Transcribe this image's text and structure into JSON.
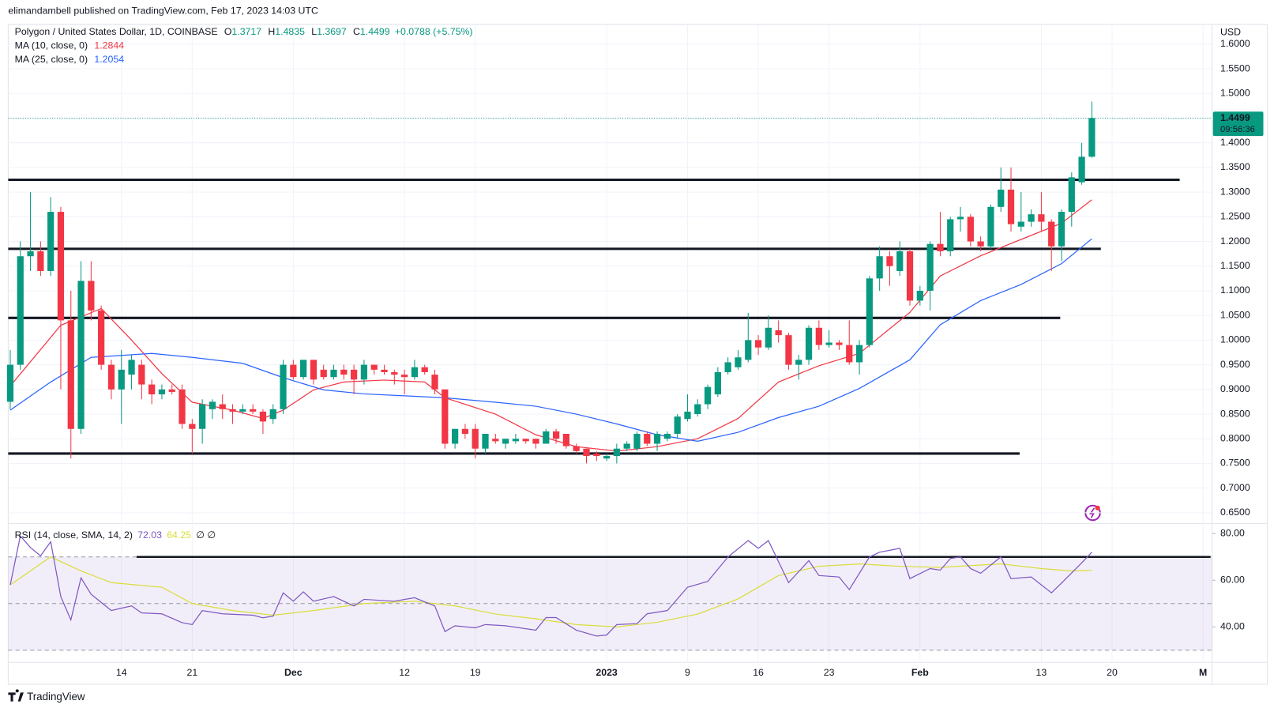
{
  "page": {
    "published": "elimandambell published on TradingView.com, Feb 17, 2023 14:03 UTC",
    "brand": "TradingView"
  },
  "chart_data": {
    "type": "candlestick",
    "symbol": "Polygon / United States Dollar, 1D, COINBASE",
    "ohlc_labels": [
      "O",
      "H",
      "L",
      "C"
    ],
    "change": "+0.0788 (+5.75%)",
    "currency": "USD",
    "countdown": "09:56:36",
    "up_color": "#089981",
    "down_color": "#f23645",
    "grid": true,
    "xlim": [
      -0.2,
      118.9
    ],
    "ylim": [
      0.63,
      1.64
    ],
    "xticks": [
      {
        "value": 11,
        "label": "14"
      },
      {
        "value": 18,
        "label": "21"
      },
      {
        "value": 28,
        "label": "Dec"
      },
      {
        "value": 39,
        "label": "12"
      },
      {
        "value": 46,
        "label": "19"
      },
      {
        "value": 59,
        "label": "2023"
      },
      {
        "value": 67,
        "label": "9"
      },
      {
        "value": 74,
        "label": "16"
      },
      {
        "value": 81,
        "label": "23"
      },
      {
        "value": 90,
        "label": "Feb"
      },
      {
        "value": 102,
        "label": "13"
      },
      {
        "value": 109,
        "label": "20"
      },
      {
        "value": 118,
        "label": "M"
      }
    ],
    "yticks": [
      {
        "value": 0.65,
        "label": "0.6500"
      },
      {
        "value": 0.7,
        "label": "0.7000"
      },
      {
        "value": 0.75,
        "label": "0.7500"
      },
      {
        "value": 0.8,
        "label": "0.8000"
      },
      {
        "value": 0.85,
        "label": "0.8500"
      },
      {
        "value": 0.9,
        "label": "0.9000"
      },
      {
        "value": 0.95,
        "label": "0.9500"
      },
      {
        "value": 1.0,
        "label": "1.0000"
      },
      {
        "value": 1.05,
        "label": "1.0500"
      },
      {
        "value": 1.1,
        "label": "1.1000"
      },
      {
        "value": 1.15,
        "label": "1.1500"
      },
      {
        "value": 1.2,
        "label": "1.2000"
      },
      {
        "value": 1.25,
        "label": "1.2500"
      },
      {
        "value": 1.3,
        "label": "1.3000"
      },
      {
        "value": 1.35,
        "label": "1.3500"
      },
      {
        "value": 1.4,
        "label": "1.4000"
      },
      {
        "value": 1.45,
        "label": "1.4500"
      },
      {
        "value": 1.5,
        "label": "1.5000"
      },
      {
        "value": 1.55,
        "label": "1.5500"
      },
      {
        "value": 1.6,
        "label": "1.6000"
      }
    ],
    "candles": {
      "open": [
        0.875,
        0.95,
        1.17,
        1.18,
        1.14,
        1.26,
        1.04,
        0.82,
        1.12,
        1.06,
        0.95,
        0.9,
        0.93,
        0.95,
        0.91,
        0.89,
        0.9,
        0.9,
        0.83,
        0.82,
        0.86,
        0.87,
        0.86,
        0.855,
        0.86,
        0.855,
        0.84,
        0.86,
        0.95,
        0.925,
        0.96,
        0.94,
        0.925,
        0.94,
        0.94,
        0.92,
        0.95,
        0.94,
        0.935,
        0.93,
        0.925,
        0.945,
        0.93,
        0.9,
        0.79,
        0.82,
        0.82,
        0.78,
        0.8,
        0.79,
        0.795,
        0.8,
        0.8,
        0.79,
        0.815,
        0.81,
        0.785,
        0.78,
        0.77,
        0.76,
        0.765,
        0.78,
        0.78,
        0.81,
        0.79,
        0.8,
        0.81,
        0.84,
        0.85,
        0.87,
        0.89,
        0.935,
        0.945,
        0.96,
        1.0,
        0.985,
        1.02,
        1.01,
        0.95,
        0.96,
        1.025,
        0.99,
        0.995,
        0.99,
        0.955,
        0.99,
        1.125,
        1.17,
        1.14,
        1.18,
        1.08,
        1.1,
        1.195,
        1.18,
        1.245,
        1.25,
        1.2,
        1.19,
        1.27,
        1.305,
        1.23,
        1.24,
        1.255,
        1.24,
        1.19,
        1.26,
        1.32,
        1.3717
      ],
      "high": [
        0.98,
        1.2,
        1.3,
        1.2,
        1.29,
        1.27,
        1.1,
        1.16,
        1.16,
        1.07,
        0.96,
        0.98,
        0.97,
        0.96,
        0.92,
        0.91,
        0.91,
        0.91,
        0.84,
        0.88,
        0.88,
        0.89,
        0.87,
        0.87,
        0.87,
        0.86,
        0.87,
        0.96,
        0.96,
        0.96,
        0.96,
        0.95,
        0.95,
        0.95,
        0.95,
        0.96,
        0.95,
        0.95,
        0.94,
        0.94,
        0.96,
        0.95,
        0.94,
        0.9,
        0.82,
        0.83,
        0.83,
        0.81,
        0.81,
        0.8,
        0.81,
        0.8,
        0.8,
        0.82,
        0.82,
        0.81,
        0.79,
        0.78,
        0.775,
        0.77,
        0.79,
        0.795,
        0.815,
        0.815,
        0.815,
        0.815,
        0.85,
        0.89,
        0.88,
        0.91,
        0.945,
        0.965,
        0.98,
        1.055,
        1.01,
        1.05,
        1.04,
        1.015,
        0.97,
        1.03,
        1.04,
        1.02,
        1.0,
        1.04,
        1.0,
        1.13,
        1.19,
        1.18,
        1.2,
        1.185,
        1.11,
        1.2,
        1.26,
        1.25,
        1.27,
        1.255,
        1.21,
        1.275,
        1.35,
        1.35,
        1.3,
        1.265,
        1.3,
        1.245,
        1.265,
        1.34,
        1.4,
        1.4835
      ],
      "low": [
        0.86,
        0.94,
        1.14,
        1.13,
        1.13,
        0.9,
        0.76,
        0.81,
        1.04,
        0.94,
        0.88,
        0.83,
        0.9,
        0.88,
        0.87,
        0.88,
        0.89,
        0.82,
        0.77,
        0.79,
        0.84,
        0.84,
        0.83,
        0.85,
        0.85,
        0.81,
        0.83,
        0.85,
        0.92,
        0.92,
        0.91,
        0.92,
        0.92,
        0.92,
        0.89,
        0.91,
        0.93,
        0.93,
        0.91,
        0.89,
        0.92,
        0.93,
        0.89,
        0.78,
        0.78,
        0.8,
        0.76,
        0.77,
        0.79,
        0.78,
        0.79,
        0.79,
        0.78,
        0.79,
        0.79,
        0.78,
        0.77,
        0.75,
        0.755,
        0.755,
        0.75,
        0.775,
        0.775,
        0.785,
        0.775,
        0.795,
        0.8,
        0.835,
        0.845,
        0.86,
        0.885,
        0.93,
        0.94,
        0.955,
        0.97,
        0.98,
        0.995,
        0.94,
        0.92,
        0.95,
        0.98,
        0.985,
        0.98,
        0.95,
        0.93,
        0.985,
        1.1,
        1.11,
        1.13,
        1.07,
        1.07,
        1.06,
        1.17,
        1.17,
        1.22,
        1.19,
        1.18,
        1.185,
        1.26,
        1.22,
        1.22,
        1.23,
        1.22,
        1.14,
        1.16,
        1.23,
        1.315,
        1.3697
      ],
      "close": [
        0.95,
        1.17,
        1.18,
        1.14,
        1.26,
        1.04,
        0.82,
        1.12,
        1.06,
        0.95,
        0.9,
        0.94,
        0.96,
        0.91,
        0.89,
        0.9,
        0.895,
        0.83,
        0.82,
        0.87,
        0.875,
        0.86,
        0.855,
        0.86,
        0.855,
        0.835,
        0.86,
        0.95,
        0.925,
        0.96,
        0.92,
        0.925,
        0.94,
        0.93,
        0.92,
        0.95,
        0.94,
        0.935,
        0.93,
        0.925,
        0.945,
        0.935,
        0.9,
        0.79,
        0.82,
        0.81,
        0.78,
        0.81,
        0.795,
        0.8,
        0.8,
        0.795,
        0.79,
        0.815,
        0.8,
        0.785,
        0.775,
        0.765,
        0.765,
        0.765,
        0.78,
        0.79,
        0.81,
        0.79,
        0.81,
        0.81,
        0.845,
        0.855,
        0.87,
        0.905,
        0.935,
        0.955,
        0.965,
        1.0,
        0.985,
        1.025,
        1.01,
        0.95,
        0.96,
        1.025,
        0.99,
        0.995,
        0.99,
        0.955,
        0.99,
        1.125,
        1.17,
        1.15,
        1.18,
        1.08,
        1.1,
        1.195,
        1.18,
        1.245,
        1.25,
        1.2,
        1.19,
        1.27,
        1.305,
        1.235,
        1.24,
        1.255,
        1.24,
        1.19,
        1.26,
        1.33,
        1.3717,
        1.4499
      ]
    },
    "ma": [
      {
        "name": "MA (10, close, 0)",
        "color": "#f23645",
        "x": [
          0,
          5,
          9,
          12,
          15,
          18,
          22,
          25,
          27,
          30,
          33,
          37,
          41,
          43,
          48,
          52,
          56,
          60,
          64,
          68,
          72,
          76,
          80,
          84,
          89,
          92,
          96,
          100,
          104,
          107
        ],
        "values": [
          0.907,
          1.03,
          1.064,
          1.0,
          0.932,
          0.874,
          0.858,
          0.841,
          0.858,
          0.899,
          0.915,
          0.919,
          0.915,
          0.883,
          0.85,
          0.808,
          0.784,
          0.775,
          0.784,
          0.8,
          0.841,
          0.915,
          0.948,
          0.973,
          1.056,
          1.13,
          1.171,
          1.204,
          1.237,
          1.2844
        ]
      },
      {
        "name": "MA (25, close, 0)",
        "color": "#2962ff",
        "x": [
          0,
          4,
          8,
          14,
          18,
          23,
          27,
          31,
          35,
          39,
          43,
          48,
          52,
          56,
          60,
          64,
          68,
          72,
          76,
          80,
          84,
          89,
          92,
          96,
          100,
          104,
          107
        ],
        "values": [
          0.858,
          0.915,
          0.965,
          0.973,
          0.965,
          0.953,
          0.924,
          0.899,
          0.891,
          0.887,
          0.883,
          0.874,
          0.866,
          0.85,
          0.83,
          0.808,
          0.795,
          0.813,
          0.843,
          0.866,
          0.902,
          0.96,
          1.031,
          1.08,
          1.113,
          1.155,
          1.2054
        ]
      }
    ],
    "levels": [
      1.325,
      1.185,
      1.045,
      0.77
    ],
    "rsi": {
      "title": "RSI (14, close, SMA, 14, 2)",
      "empty_values": "∅ ∅",
      "color": "#7e57c2",
      "sma_color": "#d9dd3c",
      "ylim": [
        30,
        84
      ],
      "yticks": [
        {
          "value": 40,
          "label": "40.00"
        },
        {
          "value": 60,
          "label": "60.00"
        },
        {
          "value": 80,
          "label": "80.00"
        }
      ],
      "bands": [
        70,
        50,
        30
      ],
      "drawn_level": 70,
      "x": [
        0,
        1,
        2,
        3,
        4,
        5,
        6,
        7,
        8,
        9,
        10,
        11,
        12,
        13,
        15,
        17,
        18,
        19,
        21,
        24,
        25,
        26,
        27,
        28,
        29,
        30,
        32,
        34,
        35,
        38,
        40,
        42,
        43,
        44,
        46,
        47,
        49,
        52,
        53,
        54,
        56,
        58,
        59,
        60,
        62,
        63,
        65,
        67,
        69,
        71,
        73,
        74,
        75,
        77,
        79,
        80,
        82,
        83,
        85,
        86,
        88,
        89,
        91,
        92,
        93,
        94,
        95,
        96,
        98,
        99,
        101,
        103,
        104,
        106,
        107
      ],
      "values": [
        58,
        79,
        74,
        70.5,
        76.5,
        53,
        43,
        61,
        54,
        50.5,
        47,
        48,
        49,
        46,
        45.6,
        41.8,
        41,
        47,
        45.6,
        45,
        43.9,
        44.6,
        54.6,
        51,
        55,
        51,
        53,
        49,
        51.8,
        51,
        52.5,
        49,
        38,
        40.5,
        39.6,
        41,
        40.5,
        38.6,
        44,
        44,
        38.6,
        36.1,
        36.5,
        41,
        41.4,
        45.6,
        47,
        57,
        59.5,
        70,
        77,
        73.7,
        77,
        59,
        68.4,
        62,
        61.4,
        56,
        70,
        72,
        73.7,
        60.7,
        65,
        64.3,
        69.3,
        70,
        65,
        63,
        70,
        60.7,
        61.4,
        54.6,
        58.8,
        67.5,
        72.03
      ],
      "sma_x": [
        0,
        4,
        7,
        10,
        15,
        18,
        22,
        26,
        30,
        35,
        40,
        44,
        48,
        52,
        56,
        60,
        64,
        68,
        72,
        76,
        80,
        84,
        88,
        92,
        96,
        98,
        102,
        105,
        107
      ],
      "sma_values": [
        58,
        70,
        64,
        59,
        57,
        50,
        47,
        45,
        47,
        50,
        51,
        49,
        45.5,
        43.5,
        41,
        40,
        42,
        45.5,
        52,
        62,
        66,
        67,
        66,
        65.5,
        66.5,
        67,
        65,
        64,
        64.25
      ]
    }
  }
}
